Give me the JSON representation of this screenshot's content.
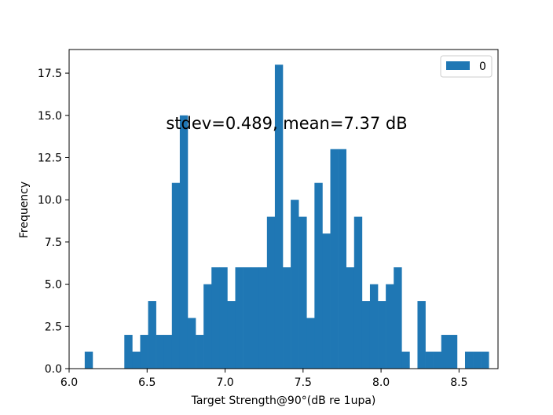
{
  "chart_data": {
    "type": "bar",
    "xlabel": "Target Strength@90°(dB re 1upa)",
    "ylabel": "Frequency",
    "annotation": "stdev=0.489, mean=7.37 dB",
    "xlim": [
      6.0,
      8.75
    ],
    "ylim": [
      0,
      18.9
    ],
    "xticks": [
      6.0,
      6.5,
      7.0,
      7.5,
      8.0,
      8.5
    ],
    "xtick_labels": [
      "6.0",
      "6.5",
      "7.0",
      "7.5",
      "8.0",
      "8.5"
    ],
    "yticks": [
      0,
      2.5,
      5,
      7.5,
      10,
      12.5,
      15,
      17.5
    ],
    "ytick_labels": [
      "0.0",
      "2.5",
      "5.0",
      "7.5",
      "10.0",
      "12.5",
      "15.0",
      "17.5"
    ],
    "grid": false,
    "legend_position": "top-right",
    "color": "#1f77b4",
    "series": [
      {
        "name": "0",
        "bin_start": 6.1,
        "bin_width": 0.0508,
        "values": [
          1,
          0,
          0,
          0,
          0,
          2,
          1,
          2,
          4,
          2,
          2,
          11,
          15,
          3,
          2,
          5,
          6,
          6,
          4,
          6,
          6,
          6,
          6,
          9,
          18,
          6,
          10,
          9,
          3,
          11,
          8,
          13,
          13,
          6,
          9,
          4,
          5,
          4,
          5,
          6,
          1,
          0,
          4,
          1,
          1,
          2,
          2,
          0,
          1,
          1,
          1
        ]
      }
    ]
  }
}
